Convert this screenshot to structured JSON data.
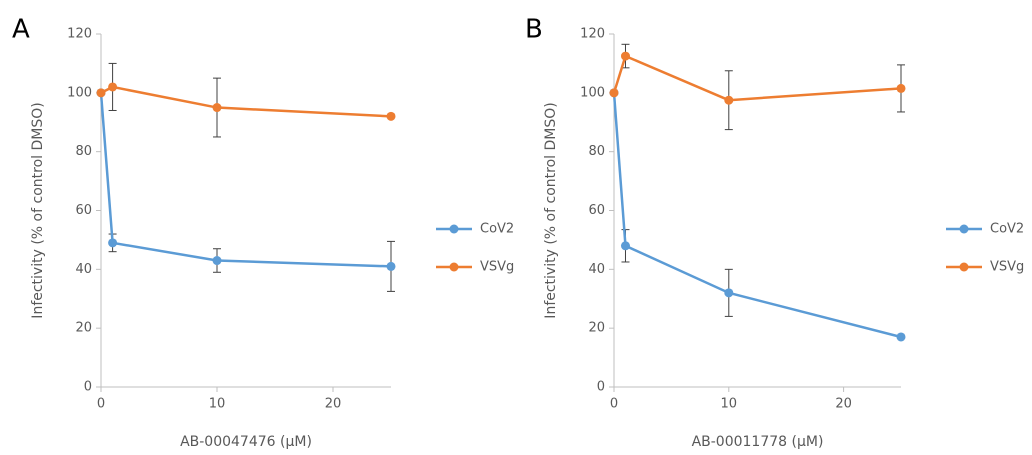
{
  "chart_data": [
    {
      "type": "line",
      "panel_label": "A",
      "xlabel": "AB-00047476 (µM)",
      "ylabel": "Infectivity (% of control DMSO)",
      "x": [
        0,
        1,
        10,
        25
      ],
      "series": [
        {
          "name": "CoV2",
          "color": "#5b9bd5",
          "values": [
            100,
            49,
            43,
            41
          ],
          "errors": [
            0,
            3,
            4,
            8.5
          ]
        },
        {
          "name": "VSVg",
          "color": "#ed7d31",
          "values": [
            100,
            102,
            95,
            92
          ],
          "errors": [
            0,
            8,
            10,
            0
          ]
        }
      ],
      "xlim": [
        0,
        25
      ],
      "xticks": [
        0,
        10,
        20
      ],
      "ylim": [
        0,
        120
      ],
      "yticks": [
        0,
        20,
        40,
        60,
        80,
        100,
        120
      ],
      "legend": "right"
    },
    {
      "type": "line",
      "panel_label": "B",
      "xlabel": "AB-00011778 (µM)",
      "ylabel": "Infectivity (% of control DMSO)",
      "x": [
        0,
        1,
        10,
        25
      ],
      "series": [
        {
          "name": "CoV2",
          "color": "#5b9bd5",
          "values": [
            100,
            48,
            32,
            17
          ],
          "errors": [
            0,
            5.5,
            8,
            0
          ]
        },
        {
          "name": "VSVg",
          "color": "#ed7d31",
          "values": [
            100,
            112.5,
            97.5,
            101.5
          ],
          "errors": [
            0,
            4,
            10,
            8
          ]
        }
      ],
      "xlim": [
        0,
        25
      ],
      "xticks": [
        0,
        10,
        20
      ],
      "ylim": [
        0,
        120
      ],
      "yticks": [
        0,
        20,
        40,
        60,
        80,
        100,
        120
      ],
      "legend": "right"
    }
  ]
}
